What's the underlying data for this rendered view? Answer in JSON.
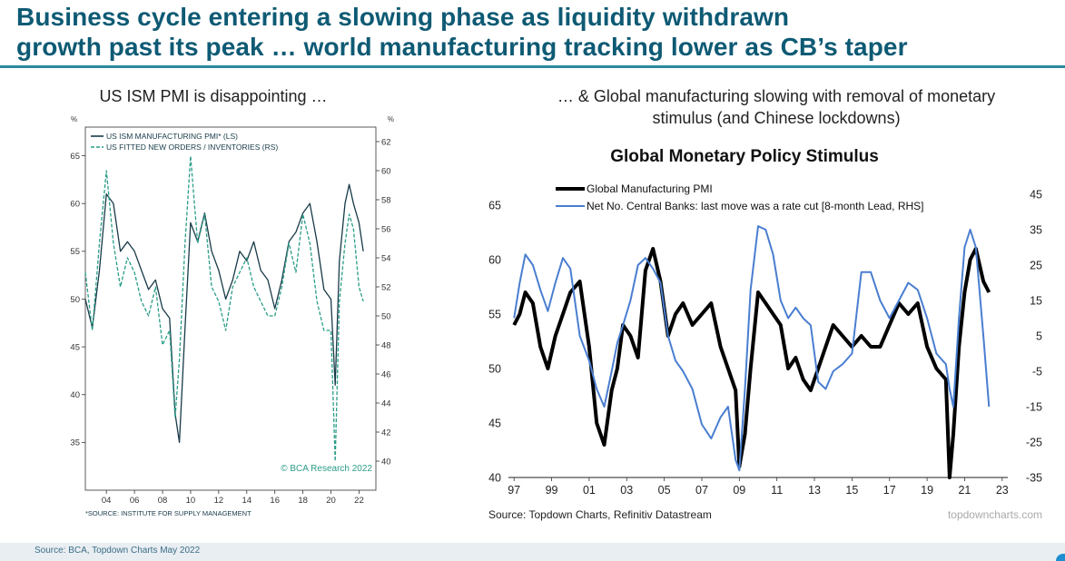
{
  "title": {
    "line1": "Business cycle entering a slowing phase as liquidity withdrawn",
    "line2": "growth past its peak … world manufacturing tracking lower as CB’s taper"
  },
  "left_subtitle": "US ISM PMI is disappointing …",
  "right_subtitle": {
    "line1": "… & Global manufacturing slowing with removal of monetary",
    "line2": "stimulus (and Chinese lockdowns)"
  },
  "footer": "Source: BCA, Topdown Charts May 2022",
  "chart_data": [
    {
      "type": "line",
      "title": "",
      "left_unit": "%",
      "right_unit": "%",
      "x_ticks": [
        "04",
        "06",
        "08",
        "10",
        "12",
        "14",
        "16",
        "18",
        "20",
        "22"
      ],
      "x_tick_values": [
        2004,
        2006,
        2008,
        2010,
        2012,
        2014,
        2016,
        2018,
        2020,
        2022
      ],
      "xlim": [
        2002.5,
        2023.2
      ],
      "left_ylim": [
        30,
        68
      ],
      "right_ylim": [
        38,
        63
      ],
      "left_ticks": [
        "35",
        "40",
        "45",
        "50",
        "55",
        "60",
        "65"
      ],
      "left_tick_values": [
        35,
        40,
        45,
        50,
        55,
        60,
        65
      ],
      "right_ticks": [
        "40",
        "42",
        "44",
        "46",
        "48",
        "50",
        "52",
        "54",
        "56",
        "58",
        "60",
        "62"
      ],
      "right_tick_values": [
        40,
        42,
        44,
        46,
        48,
        50,
        52,
        54,
        56,
        58,
        60,
        62
      ],
      "colors": {
        "ism": "#173a48",
        "orders": "#2a9d87"
      },
      "series": [
        {
          "name": "US ISM MANUFACTURING PMI* (LS)",
          "axis": "left",
          "style": "solid",
          "x": [
            2002.5,
            2003.0,
            2003.5,
            2004.0,
            2004.5,
            2005.0,
            2005.5,
            2006.0,
            2006.5,
            2007.0,
            2007.5,
            2008.0,
            2008.5,
            2008.9,
            2009.2,
            2009.6,
            2010.0,
            2010.5,
            2011.0,
            2011.5,
            2012.0,
            2012.5,
            2013.0,
            2013.5,
            2014.0,
            2014.5,
            2015.0,
            2015.5,
            2016.0,
            2016.5,
            2017.0,
            2017.5,
            2018.0,
            2018.5,
            2019.0,
            2019.5,
            2020.0,
            2020.3,
            2020.6,
            2021.0,
            2021.3,
            2021.6,
            2022.0,
            2022.3
          ],
          "values": [
            50,
            47,
            53,
            61,
            60,
            55,
            56,
            55,
            53,
            51,
            52,
            49,
            48,
            38,
            35,
            47,
            58,
            56,
            59,
            55,
            53,
            50,
            52,
            55,
            54,
            56,
            53,
            52,
            49,
            52,
            56,
            57,
            59,
            60,
            56,
            51,
            50,
            41,
            54,
            60,
            62,
            60,
            58,
            55
          ]
        },
        {
          "name": "US FITTED NEW ORDERS / INVENTORIES (RS)",
          "axis": "right",
          "style": "dashed",
          "x": [
            2002.5,
            2003.0,
            2003.5,
            2004.0,
            2004.5,
            2005.0,
            2005.5,
            2006.0,
            2006.5,
            2007.0,
            2007.5,
            2008.0,
            2008.5,
            2008.9,
            2009.2,
            2009.6,
            2010.0,
            2010.5,
            2011.0,
            2011.5,
            2012.0,
            2012.5,
            2013.0,
            2013.5,
            2014.0,
            2014.5,
            2015.0,
            2015.5,
            2016.0,
            2016.5,
            2017.0,
            2017.5,
            2018.0,
            2018.5,
            2019.0,
            2019.5,
            2020.0,
            2020.3,
            2020.6,
            2021.0,
            2021.3,
            2021.6,
            2022.0,
            2022.3
          ],
          "values": [
            53,
            49,
            55,
            60,
            55,
            52,
            54,
            53,
            51,
            50,
            52,
            48,
            49,
            43,
            47,
            55,
            61,
            55,
            57,
            52,
            51,
            49,
            52,
            53,
            54,
            52,
            51,
            50,
            50,
            52,
            55,
            53,
            57,
            55,
            51,
            49,
            49,
            40,
            51,
            55,
            57,
            56,
            52,
            51
          ]
        }
      ],
      "legend": "top-left",
      "watermark": "© BCA Research 2022",
      "footnote": "*SOURCE: INSTITUTE FOR SUPPLY MANAGEMENT"
    },
    {
      "type": "line",
      "title": "Global Monetary Policy Stimulus",
      "x_ticks": [
        "97",
        "99",
        "01",
        "03",
        "05",
        "07",
        "09",
        "11",
        "13",
        "15",
        "17",
        "19",
        "21",
        "23"
      ],
      "x_tick_values": [
        1997,
        1999,
        2001,
        2003,
        2005,
        2007,
        2009,
        2011,
        2013,
        2015,
        2017,
        2019,
        2021,
        2023
      ],
      "xlim": [
        1996.7,
        2023.3
      ],
      "left_ylim": [
        40,
        66
      ],
      "right_ylim": [
        -35,
        45
      ],
      "left_ticks": [
        "40",
        "45",
        "50",
        "55",
        "60",
        "65"
      ],
      "left_tick_values": [
        40,
        45,
        50,
        55,
        60,
        65
      ],
      "right_ticks": [
        "-35",
        "-25",
        "-15",
        "-5",
        "5",
        "15",
        "25",
        "35",
        "45"
      ],
      "right_tick_values": [
        -35,
        -25,
        -15,
        -5,
        5,
        15,
        25,
        35,
        45
      ],
      "colors": {
        "pmi": "#000000",
        "banks": "#4a7ed0"
      },
      "series": [
        {
          "name": "Global Manufacturing PMI",
          "axis": "left",
          "style": "thick",
          "x": [
            1997.0,
            1997.3,
            1997.6,
            1998.0,
            1998.4,
            1998.8,
            1999.2,
            1999.6,
            2000.0,
            2000.5,
            2001.0,
            2001.4,
            2001.8,
            2002.2,
            2002.5,
            2002.8,
            2003.2,
            2003.6,
            2004.0,
            2004.4,
            2004.8,
            2005.2,
            2005.6,
            2006.0,
            2006.5,
            2007.0,
            2007.5,
            2008.0,
            2008.4,
            2008.8,
            2009.0,
            2009.3,
            2009.6,
            2010.0,
            2010.4,
            2010.8,
            2011.2,
            2011.6,
            2012.0,
            2012.4,
            2012.8,
            2013.2,
            2013.6,
            2014.0,
            2014.5,
            2015.0,
            2015.5,
            2016.0,
            2016.5,
            2017.0,
            2017.5,
            2018.0,
            2018.5,
            2019.0,
            2019.5,
            2020.0,
            2020.2,
            2020.4,
            2020.7,
            2021.0,
            2021.3,
            2021.6,
            2022.0,
            2022.3
          ],
          "values": [
            54,
            55,
            57,
            56,
            52,
            50,
            53,
            55,
            57,
            58,
            52,
            45,
            43,
            48,
            50,
            54,
            53,
            51,
            59,
            61,
            58,
            53,
            55,
            56,
            54,
            55,
            56,
            52,
            50,
            48,
            41,
            44,
            50,
            57,
            56,
            55,
            54,
            50,
            51,
            49,
            48,
            50,
            52,
            54,
            53,
            52,
            53,
            52,
            52,
            54,
            56,
            55,
            56,
            52,
            50,
            49,
            40,
            44,
            52,
            57,
            60,
            61,
            58,
            57
          ]
        },
        {
          "name": "Net No. Central Banks: last move was a rate cut  [8-month Lead, RHS]",
          "axis": "right",
          "style": "thin",
          "x": [
            1997.0,
            1997.3,
            1997.6,
            1998.0,
            1998.4,
            1998.8,
            1999.2,
            1999.6,
            2000.0,
            2000.5,
            2001.0,
            2001.4,
            2001.8,
            2002.2,
            2002.5,
            2002.8,
            2003.2,
            2003.6,
            2004.0,
            2004.4,
            2004.8,
            2005.2,
            2005.6,
            2006.0,
            2006.5,
            2007.0,
            2007.5,
            2008.0,
            2008.4,
            2008.8,
            2009.0,
            2009.3,
            2009.6,
            2010.0,
            2010.4,
            2010.8,
            2011.2,
            2011.6,
            2012.0,
            2012.4,
            2012.8,
            2013.2,
            2013.6,
            2014.0,
            2014.5,
            2015.0,
            2015.5,
            2016.0,
            2016.5,
            2017.0,
            2017.5,
            2018.0,
            2018.5,
            2019.0,
            2019.5,
            2020.0,
            2020.2,
            2020.4,
            2020.7,
            2021.0,
            2021.3,
            2021.6,
            2022.0,
            2022.3
          ],
          "values": [
            10,
            20,
            28,
            25,
            18,
            12,
            20,
            27,
            24,
            5,
            -2,
            -10,
            -15,
            -5,
            3,
            8,
            15,
            25,
            27,
            24,
            20,
            5,
            -2,
            -5,
            -10,
            -20,
            -24,
            -18,
            -15,
            -30,
            -33,
            -10,
            18,
            36,
            35,
            28,
            15,
            10,
            13,
            10,
            8,
            -8,
            -10,
            -5,
            -3,
            0,
            23,
            23,
            15,
            10,
            15,
            20,
            18,
            10,
            0,
            -3,
            -10,
            -15,
            10,
            30,
            35,
            30,
            5,
            -15
          ]
        }
      ],
      "legend": "top-left",
      "watermark": "topdowncharts.com",
      "footnote": "Source: Topdown Charts, Refinitiv Datastream"
    }
  ]
}
